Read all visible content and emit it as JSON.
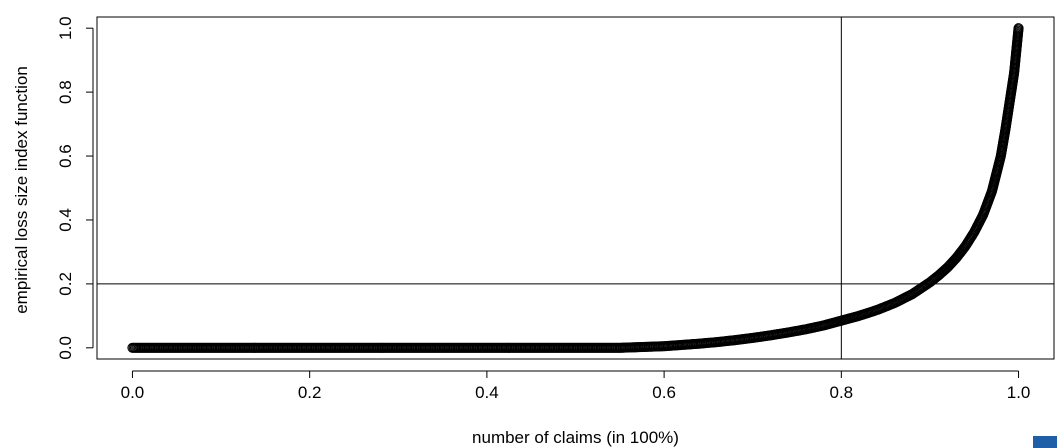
{
  "chart_data": {
    "type": "scatter",
    "title": "",
    "xlabel": "number of claims (in 100%)",
    "ylabel": "empirical loss size index function",
    "xlim": [
      -0.04,
      1.04
    ],
    "ylim": [
      -0.035,
      1.035
    ],
    "x_ticks": [
      0.0,
      0.2,
      0.4,
      0.6,
      0.8,
      1.0
    ],
    "x_tick_labels": [
      "0.0",
      "0.2",
      "0.4",
      "0.6",
      "0.8",
      "1.0"
    ],
    "y_ticks": [
      0.0,
      0.2,
      0.4,
      0.6,
      0.8,
      1.0
    ],
    "y_tick_labels": [
      "0.0",
      "0.2",
      "0.4",
      "0.6",
      "0.8",
      "1.0"
    ],
    "reference_lines": {
      "vertical_x": 0.8,
      "horizontal_y": 0.2
    },
    "grid": false,
    "legend": "none",
    "marker": "open-circle",
    "points": [
      [
        0.0,
        0.0
      ],
      [
        0.05,
        0.0
      ],
      [
        0.1,
        0.0
      ],
      [
        0.15,
        0.0
      ],
      [
        0.2,
        0.0
      ],
      [
        0.25,
        0.0
      ],
      [
        0.3,
        0.0
      ],
      [
        0.35,
        0.0
      ],
      [
        0.4,
        0.0
      ],
      [
        0.45,
        0.0
      ],
      [
        0.5,
        0.0
      ],
      [
        0.55,
        0.0
      ],
      [
        0.56,
        0.001
      ],
      [
        0.58,
        0.003
      ],
      [
        0.6,
        0.005
      ],
      [
        0.62,
        0.009
      ],
      [
        0.64,
        0.013
      ],
      [
        0.66,
        0.018
      ],
      [
        0.68,
        0.024
      ],
      [
        0.7,
        0.031
      ],
      [
        0.72,
        0.039
      ],
      [
        0.74,
        0.048
      ],
      [
        0.76,
        0.058
      ],
      [
        0.78,
        0.07
      ],
      [
        0.8,
        0.085
      ],
      [
        0.82,
        0.1
      ],
      [
        0.84,
        0.118
      ],
      [
        0.86,
        0.14
      ],
      [
        0.88,
        0.168
      ],
      [
        0.9,
        0.205
      ],
      [
        0.91,
        0.227
      ],
      [
        0.92,
        0.252
      ],
      [
        0.93,
        0.282
      ],
      [
        0.94,
        0.318
      ],
      [
        0.95,
        0.362
      ],
      [
        0.96,
        0.416
      ],
      [
        0.97,
        0.49
      ],
      [
        0.98,
        0.6
      ],
      [
        0.985,
        0.68
      ],
      [
        0.99,
        0.77
      ],
      [
        0.995,
        0.86
      ],
      [
        1.0,
        1.0
      ]
    ],
    "colors": {
      "marker": "#000000",
      "axes": "#000000",
      "corner_mark": "#1f5fa8"
    }
  }
}
